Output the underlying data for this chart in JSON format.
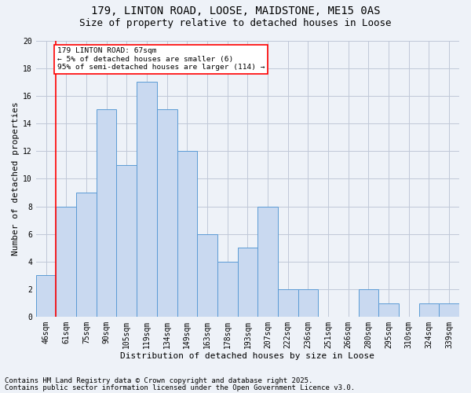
{
  "title1": "179, LINTON ROAD, LOOSE, MAIDSTONE, ME15 0AS",
  "title2": "Size of property relative to detached houses in Loose",
  "xlabel": "Distribution of detached houses by size in Loose",
  "ylabel": "Number of detached properties",
  "categories": [
    "46sqm",
    "61sqm",
    "75sqm",
    "90sqm",
    "105sqm",
    "119sqm",
    "134sqm",
    "149sqm",
    "163sqm",
    "178sqm",
    "193sqm",
    "207sqm",
    "222sqm",
    "236sqm",
    "251sqm",
    "266sqm",
    "280sqm",
    "295sqm",
    "310sqm",
    "324sqm",
    "339sqm"
  ],
  "values": [
    3,
    8,
    9,
    15,
    11,
    17,
    15,
    12,
    6,
    4,
    5,
    8,
    2,
    2,
    0,
    0,
    2,
    1,
    0,
    1,
    1
  ],
  "bar_color": "#c9d9f0",
  "bar_edge_color": "#5b9bd5",
  "red_line_index": 1,
  "annotation_text": "179 LINTON ROAD: 67sqm\n← 5% of detached houses are smaller (6)\n95% of semi-detached houses are larger (114) →",
  "annotation_box_color": "white",
  "annotation_box_edge_color": "red",
  "ylim": [
    0,
    20
  ],
  "yticks": [
    0,
    2,
    4,
    6,
    8,
    10,
    12,
    14,
    16,
    18,
    20
  ],
  "grid_color": "#c0c8d8",
  "background_color": "#eef2f8",
  "footnote1": "Contains HM Land Registry data © Crown copyright and database right 2025.",
  "footnote2": "Contains public sector information licensed under the Open Government Licence v3.0.",
  "title_fontsize": 10,
  "subtitle_fontsize": 9,
  "axis_label_fontsize": 8,
  "tick_fontsize": 7,
  "footnote_fontsize": 6.5
}
